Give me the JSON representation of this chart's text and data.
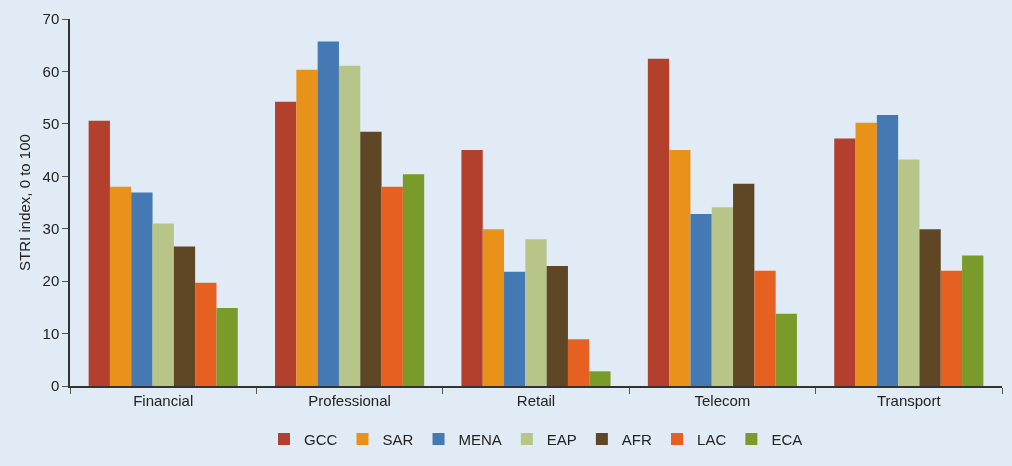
{
  "chart_data": {
    "type": "bar",
    "ylabel": "STRI index, 0 to 100",
    "categories": [
      "Financial",
      "Professional",
      "Retail",
      "Telecom",
      "Transport"
    ],
    "series": [
      {
        "name": "GCC",
        "color": "#b3402d",
        "values": [
          50.6,
          54.2,
          45.0,
          62.4,
          47.2
        ]
      },
      {
        "name": "SAR",
        "color": "#e8921a",
        "values": [
          38.0,
          60.3,
          29.9,
          45.0,
          50.2
        ]
      },
      {
        "name": "MENA",
        "color": "#4579b3",
        "values": [
          36.9,
          65.7,
          21.8,
          32.8,
          51.7
        ]
      },
      {
        "name": "EAP",
        "color": "#b7c688",
        "values": [
          31.0,
          61.1,
          28.0,
          34.1,
          43.2
        ]
      },
      {
        "name": "AFR",
        "color": "#5f4726",
        "values": [
          26.6,
          48.5,
          22.9,
          38.6,
          29.9
        ]
      },
      {
        "name": "LAC",
        "color": "#e66022",
        "values": [
          19.7,
          38.0,
          8.9,
          22.0,
          22.0
        ]
      },
      {
        "name": "ECA",
        "color": "#7a9b29",
        "values": [
          14.9,
          40.4,
          2.8,
          13.8,
          24.9
        ]
      }
    ],
    "ylim": [
      0,
      70
    ],
    "yticks": [
      0,
      10,
      20,
      30,
      40,
      50,
      60,
      70
    ],
    "grid": false,
    "legend": "bottom"
  }
}
